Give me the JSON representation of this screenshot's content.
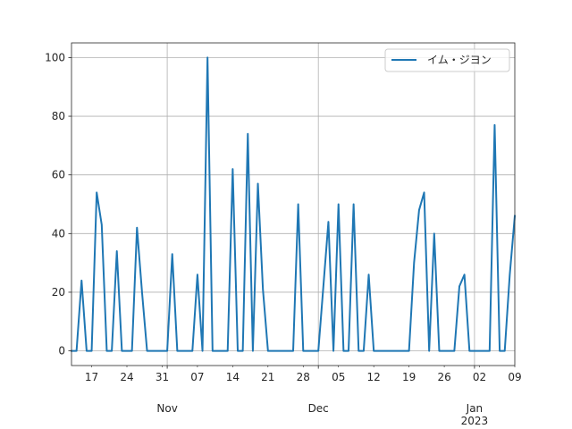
{
  "chart_data": {
    "type": "line",
    "title": "",
    "xlabel": "",
    "ylabel": "",
    "x_start": "2022-10-13",
    "x_end": "2023-01-09",
    "xlim": [
      "2022-10-13",
      "2023-01-09"
    ],
    "ylim": [
      -5,
      105
    ],
    "grid": true,
    "legend_position": "top-right",
    "line_color": "#1f77b4",
    "y_ticks": [
      0,
      20,
      40,
      60,
      80,
      100
    ],
    "y_tick_labels": [
      "0",
      "20",
      "40",
      "60",
      "80",
      "100"
    ],
    "x_minor_ticks": [
      {
        "date": "2022-10-17",
        "label": "17"
      },
      {
        "date": "2022-10-24",
        "label": "24"
      },
      {
        "date": "2022-10-31",
        "label": "31"
      },
      {
        "date": "2022-11-07",
        "label": "07"
      },
      {
        "date": "2022-11-14",
        "label": "14"
      },
      {
        "date": "2022-11-21",
        "label": "21"
      },
      {
        "date": "2022-11-28",
        "label": "28"
      },
      {
        "date": "2022-12-05",
        "label": "05"
      },
      {
        "date": "2022-12-12",
        "label": "12"
      },
      {
        "date": "2022-12-19",
        "label": "19"
      },
      {
        "date": "2022-12-26",
        "label": "26"
      },
      {
        "date": "2023-01-02",
        "label": "02"
      },
      {
        "date": "2023-01-09",
        "label": "09"
      }
    ],
    "x_major_ticks": [
      {
        "date": "2022-11-01",
        "label": "Nov",
        "sublabel": ""
      },
      {
        "date": "2022-12-01",
        "label": "Dec",
        "sublabel": ""
      },
      {
        "date": "2023-01-01",
        "label": "Jan",
        "sublabel": "2023"
      }
    ],
    "series": [
      {
        "name": "イム・ジヨン",
        "color": "#1f77b4",
        "points": [
          [
            "2022-10-13",
            0
          ],
          [
            "2022-10-14",
            0
          ],
          [
            "2022-10-15",
            24
          ],
          [
            "2022-10-16",
            0
          ],
          [
            "2022-10-17",
            0
          ],
          [
            "2022-10-18",
            54
          ],
          [
            "2022-10-19",
            43
          ],
          [
            "2022-10-20",
            0
          ],
          [
            "2022-10-21",
            0
          ],
          [
            "2022-10-22",
            34
          ],
          [
            "2022-10-23",
            0
          ],
          [
            "2022-10-24",
            0
          ],
          [
            "2022-10-25",
            0
          ],
          [
            "2022-10-26",
            42
          ],
          [
            "2022-10-27",
            20
          ],
          [
            "2022-10-28",
            0
          ],
          [
            "2022-10-29",
            0
          ],
          [
            "2022-10-30",
            0
          ],
          [
            "2022-10-31",
            0
          ],
          [
            "2022-11-01",
            0
          ],
          [
            "2022-11-02",
            33
          ],
          [
            "2022-11-03",
            0
          ],
          [
            "2022-11-04",
            0
          ],
          [
            "2022-11-05",
            0
          ],
          [
            "2022-11-06",
            0
          ],
          [
            "2022-11-07",
            26
          ],
          [
            "2022-11-08",
            0
          ],
          [
            "2022-11-09",
            100
          ],
          [
            "2022-11-10",
            0
          ],
          [
            "2022-11-11",
            0
          ],
          [
            "2022-11-12",
            0
          ],
          [
            "2022-11-13",
            0
          ],
          [
            "2022-11-14",
            62
          ],
          [
            "2022-11-15",
            0
          ],
          [
            "2022-11-16",
            0
          ],
          [
            "2022-11-17",
            74
          ],
          [
            "2022-11-18",
            0
          ],
          [
            "2022-11-19",
            57
          ],
          [
            "2022-11-20",
            21
          ],
          [
            "2022-11-21",
            0
          ],
          [
            "2022-11-22",
            0
          ],
          [
            "2022-11-23",
            0
          ],
          [
            "2022-11-24",
            0
          ],
          [
            "2022-11-25",
            0
          ],
          [
            "2022-11-26",
            0
          ],
          [
            "2022-11-27",
            50
          ],
          [
            "2022-11-28",
            0
          ],
          [
            "2022-11-29",
            0
          ],
          [
            "2022-11-30",
            0
          ],
          [
            "2022-12-01",
            0
          ],
          [
            "2022-12-02",
            22
          ],
          [
            "2022-12-03",
            44
          ],
          [
            "2022-12-04",
            0
          ],
          [
            "2022-12-05",
            50
          ],
          [
            "2022-12-06",
            0
          ],
          [
            "2022-12-07",
            0
          ],
          [
            "2022-12-08",
            50
          ],
          [
            "2022-12-09",
            0
          ],
          [
            "2022-12-10",
            0
          ],
          [
            "2022-12-11",
            26
          ],
          [
            "2022-12-12",
            0
          ],
          [
            "2022-12-13",
            0
          ],
          [
            "2022-12-14",
            0
          ],
          [
            "2022-12-15",
            0
          ],
          [
            "2022-12-16",
            0
          ],
          [
            "2022-12-17",
            0
          ],
          [
            "2022-12-18",
            0
          ],
          [
            "2022-12-19",
            0
          ],
          [
            "2022-12-20",
            30
          ],
          [
            "2022-12-21",
            48
          ],
          [
            "2022-12-22",
            54
          ],
          [
            "2022-12-23",
            0
          ],
          [
            "2022-12-24",
            40
          ],
          [
            "2022-12-25",
            0
          ],
          [
            "2022-12-26",
            0
          ],
          [
            "2022-12-27",
            0
          ],
          [
            "2022-12-28",
            0
          ],
          [
            "2022-12-29",
            22
          ],
          [
            "2022-12-30",
            26
          ],
          [
            "2022-12-31",
            0
          ],
          [
            "2023-01-01",
            0
          ],
          [
            "2023-01-02",
            0
          ],
          [
            "2023-01-03",
            0
          ],
          [
            "2023-01-04",
            0
          ],
          [
            "2023-01-05",
            77
          ],
          [
            "2023-01-06",
            0
          ],
          [
            "2023-01-07",
            0
          ],
          [
            "2023-01-08",
            26
          ],
          [
            "2023-01-09",
            46
          ]
        ]
      }
    ]
  }
}
